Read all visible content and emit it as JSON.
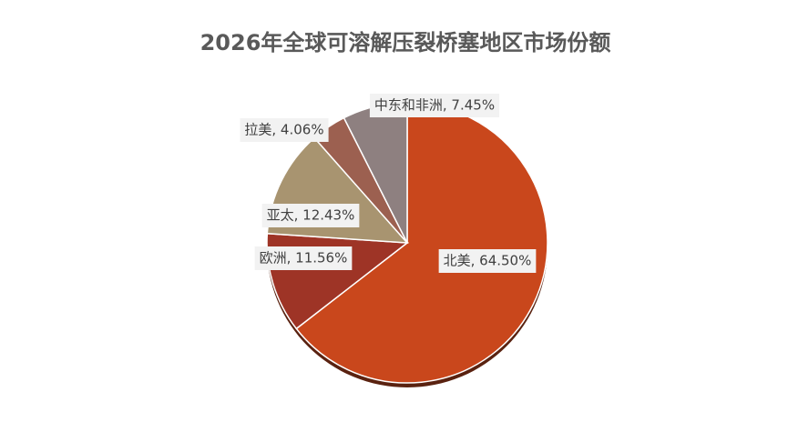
{
  "chart_data": {
    "type": "pie",
    "title": "2026年全球可溶解压裂桥塞地区市场份额",
    "categories": [
      "北美",
      "欧洲",
      "亚太",
      "拉美",
      "中东和非洲"
    ],
    "values": [
      64.5,
      11.56,
      12.43,
      4.06,
      7.45
    ],
    "value_labels": [
      "北美, 64.50%",
      "欧洲, 11.56%",
      "亚太, 12.43%",
      "拉美, 4.06%",
      "中东和非洲, 7.45%"
    ],
    "colors": [
      "#c9471c",
      "#9e3426",
      "#a89470",
      "#9c6050",
      "#8e8080"
    ]
  }
}
